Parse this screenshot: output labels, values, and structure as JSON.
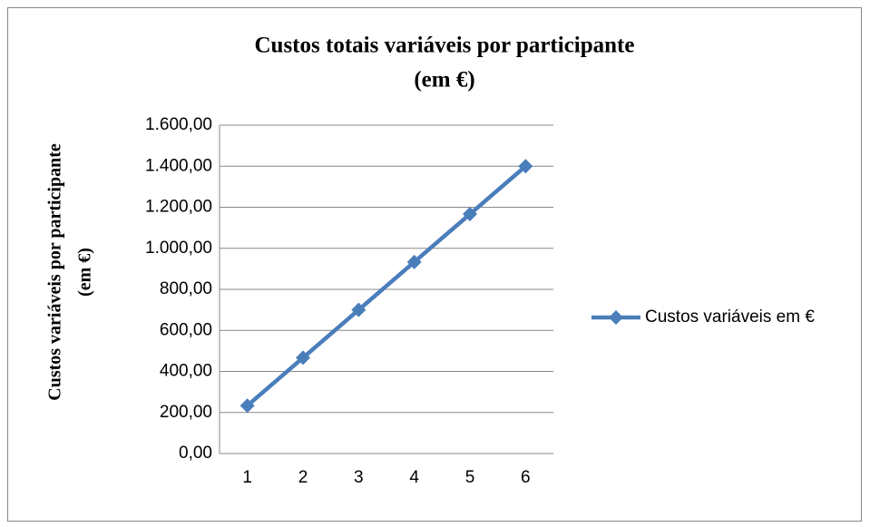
{
  "chart_data": {
    "type": "line",
    "title": [
      "Custos totais variáveis por participante",
      "(em €)"
    ],
    "y_label": [
      "Custos variáveis  por participante",
      "(em €)"
    ],
    "categories": [
      "1",
      "2",
      "3",
      "4",
      "5",
      "6"
    ],
    "series": [
      {
        "name": "Custos variáveis em €",
        "color": "#4a7ebb",
        "values": [
          233.33,
          466.67,
          700,
          933.33,
          1166.67,
          1400
        ]
      }
    ],
    "ylim": [
      0,
      1600
    ],
    "yticks": [
      {
        "value": 0,
        "label": "0,00"
      },
      {
        "value": 200,
        "label": "200,00"
      },
      {
        "value": 400,
        "label": "400,00"
      },
      {
        "value": 600,
        "label": "600,00"
      },
      {
        "value": 800,
        "label": "800,00"
      },
      {
        "value": 1000,
        "label": "1.000,00"
      },
      {
        "value": 1200,
        "label": "1.200,00"
      },
      {
        "value": 1400,
        "label": "1.400,00"
      },
      {
        "value": 1600,
        "label": "1.600,00"
      }
    ],
    "grid": true,
    "legend": "right"
  }
}
